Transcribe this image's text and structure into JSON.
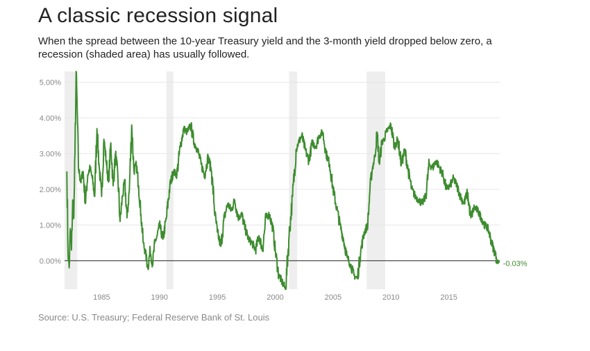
{
  "header": {
    "title": "A classic recession signal",
    "subtitle": "When the spread between the 10-year Treasury yield and the 3-month yield dropped below zero, a recession (shaded area) has usually followed."
  },
  "footer": {
    "source": "Source: U.S. Treasury; Federal Reserve Bank of St. Louis"
  },
  "chart_data": {
    "type": "line",
    "title": "",
    "xlabel": "",
    "ylabel": "",
    "xlim": [
      1981.8,
      2019.4
    ],
    "ylim": [
      -0.8,
      5.3
    ],
    "x_ticks": [
      1985,
      1990,
      1995,
      2000,
      2005,
      2010,
      2015
    ],
    "x_tick_labels": [
      "1985",
      "1990",
      "1995",
      "2000",
      "2005",
      "2010",
      "2015"
    ],
    "y_ticks": [
      0,
      1,
      2,
      3,
      4,
      5
    ],
    "y_tick_labels": [
      "0.00%",
      "1.00%",
      "2.00%",
      "3.00%",
      "4.00%",
      "5.00%"
    ],
    "grid": true,
    "line_color": "#3d8c2f",
    "recession_color": "#eeeeee",
    "recessions": [
      [
        1981.6,
        1982.9
      ],
      [
        1990.6,
        1991.2
      ],
      [
        2001.2,
        2001.9
      ],
      [
        2007.9,
        2009.5
      ]
    ],
    "end_label": "-0.03%",
    "series": [
      {
        "x": [
          1982.0,
          1982.1,
          1982.2,
          1982.3,
          1982.4,
          1982.5,
          1982.6,
          1982.7,
          1982.8,
          1982.9,
          1983.0,
          1983.2,
          1983.4,
          1983.6,
          1983.8,
          1984.0,
          1984.2,
          1984.4,
          1984.6,
          1984.8,
          1985.0,
          1985.2,
          1985.4,
          1985.6,
          1985.8,
          1986.0,
          1986.2,
          1986.4,
          1986.6,
          1986.8,
          1987.0,
          1987.2,
          1987.4,
          1987.6,
          1987.8,
          1988.0,
          1988.2,
          1988.4,
          1988.6,
          1988.8,
          1989.0,
          1989.2,
          1989.4,
          1989.6,
          1989.8,
          1990.0,
          1990.3,
          1990.6,
          1990.9,
          1991.2,
          1991.5,
          1991.8,
          1992.1,
          1992.4,
          1992.7,
          1993.0,
          1993.3,
          1993.6,
          1993.9,
          1994.2,
          1994.5,
          1994.8,
          1995.0,
          1995.3,
          1995.6,
          1995.9,
          1996.2,
          1996.5,
          1996.8,
          1997.1,
          1997.4,
          1997.7,
          1998.0,
          1998.3,
          1998.6,
          1998.9,
          1999.2,
          1999.5,
          1999.8,
          2000.0,
          2000.3,
          2000.6,
          2000.9,
          2001.2,
          2001.5,
          2001.8,
          2002.0,
          2002.3,
          2002.6,
          2002.9,
          2003.2,
          2003.5,
          2003.8,
          2004.1,
          2004.4,
          2004.7,
          2005.0,
          2005.3,
          2005.6,
          2005.9,
          2006.2,
          2006.5,
          2006.8,
          2007.1,
          2007.4,
          2007.7,
          2008.0,
          2008.2,
          2008.4,
          2008.6,
          2008.8,
          2009.0,
          2009.2,
          2009.4,
          2009.6,
          2009.8,
          2010.0,
          2010.3,
          2010.6,
          2010.9,
          2011.2,
          2011.5,
          2011.8,
          2012.1,
          2012.4,
          2012.7,
          2013.0,
          2013.3,
          2013.6,
          2013.9,
          2014.2,
          2014.5,
          2014.8,
          2015.1,
          2015.4,
          2015.7,
          2016.0,
          2016.3,
          2016.6,
          2016.9,
          2017.2,
          2017.5,
          2017.8,
          2018.1,
          2018.4,
          2018.7,
          2019.0,
          2019.1,
          2019.2
        ],
        "values": [
          2.5,
          0.2,
          -0.2,
          0.9,
          0.3,
          1.7,
          1.2,
          3.0,
          5.3,
          4.2,
          2.6,
          2.2,
          2.5,
          1.6,
          2.4,
          2.6,
          2.3,
          1.8,
          3.7,
          2.6,
          1.8,
          3.4,
          2.8,
          2.2,
          3.3,
          2.1,
          3.0,
          2.4,
          1.1,
          1.8,
          2.2,
          1.2,
          2.0,
          3.8,
          2.5,
          2.7,
          2.1,
          1.3,
          0.5,
          0.2,
          -0.2,
          0.3,
          -0.1,
          0.5,
          0.7,
          1.0,
          0.6,
          1.2,
          2.1,
          2.5,
          2.4,
          3.2,
          3.7,
          3.6,
          3.8,
          3.3,
          3.1,
          2.7,
          2.4,
          2.9,
          2.5,
          1.3,
          0.8,
          0.4,
          1.2,
          1.6,
          1.4,
          1.7,
          1.2,
          1.3,
          0.9,
          0.6,
          0.5,
          0.3,
          0.7,
          0.3,
          1.2,
          1.3,
          0.9,
          0.3,
          -0.4,
          -0.6,
          -0.8,
          0.7,
          1.8,
          3.1,
          3.3,
          3.5,
          3.1,
          2.8,
          3.3,
          3.2,
          3.5,
          3.6,
          3.0,
          2.7,
          2.0,
          1.5,
          1.0,
          0.6,
          0.1,
          -0.1,
          -0.4,
          -0.5,
          0.3,
          0.8,
          1.0,
          2.1,
          2.6,
          2.9,
          3.6,
          2.7,
          3.3,
          3.4,
          3.6,
          3.7,
          3.8,
          3.2,
          3.4,
          2.7,
          3.1,
          2.5,
          2.0,
          1.8,
          1.7,
          1.6,
          1.8,
          2.7,
          2.6,
          2.8,
          2.6,
          2.4,
          2.0,
          2.1,
          2.3,
          2.1,
          1.8,
          1.6,
          1.9,
          1.2,
          1.5,
          1.4,
          1.2,
          1.0,
          0.9,
          0.5,
          0.2,
          0.1,
          -0.03
        ]
      }
    ]
  }
}
